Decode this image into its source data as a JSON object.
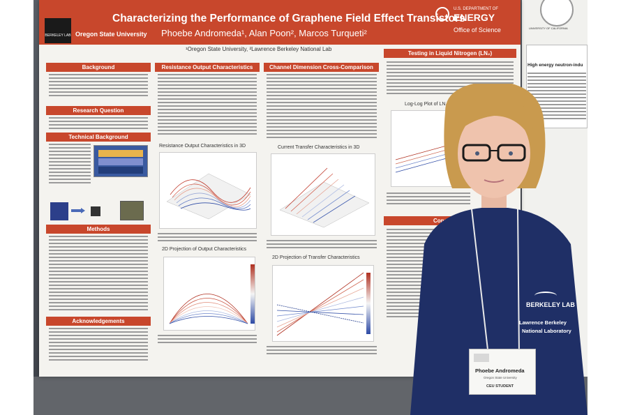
{
  "poster": {
    "title": "Characterizing the Performance of Graphene Field Effect Transistors",
    "authors": "Phoebe Andromeda¹, Alan Poon², Marcos Turqueti²",
    "affiliations": "¹Oregon State University, ²Lawrence Berkeley National Lab",
    "logos": {
      "berkeley": "BERKELEY LAB",
      "oregon_state": "Oregon State University",
      "doe_small": "U.S. DEPARTMENT OF",
      "doe_big": "ENERGY",
      "office": "Office of Science"
    },
    "sections": {
      "background": "Background",
      "research_question": "Research Question",
      "technical_background": "Technical Background",
      "methods": "Methods",
      "acknowledgements": "Acknowledgements",
      "resistance": "Resistance Output Characteristics",
      "channel": "Channel Dimension Cross-Comparison",
      "nitrogen": "Testing in Liquid Nitrogen (LN₂)",
      "conclusions": "Conclusions"
    },
    "figures": {
      "res3d": "Resistance Output Characteristics in 3D",
      "res2d": "2D Projection of Output Characteristics",
      "cur3d": "Current Transfer Characteristics in 3D",
      "cur2d": "2D Projection of Transfer Characteristics",
      "loglog": "Log-Log Plot of LN₂ Testing"
    }
  },
  "badge": {
    "name": "Phoebe Andromeda",
    "org": "Oregon State University",
    "tag": "CEU STUDENT"
  },
  "shirt": {
    "line1": "BERKELEY LAB",
    "line2": "Lawrence Berkeley",
    "line3": "National Laboratory"
  },
  "side_panel": {
    "heading": "High energy neutron-indu",
    "uc": "UNIVERSITY OF CALIFORNIA"
  },
  "colors": {
    "banner": "#c8472c",
    "shirt": "#1f2f66",
    "hair": "#c99a4e"
  }
}
